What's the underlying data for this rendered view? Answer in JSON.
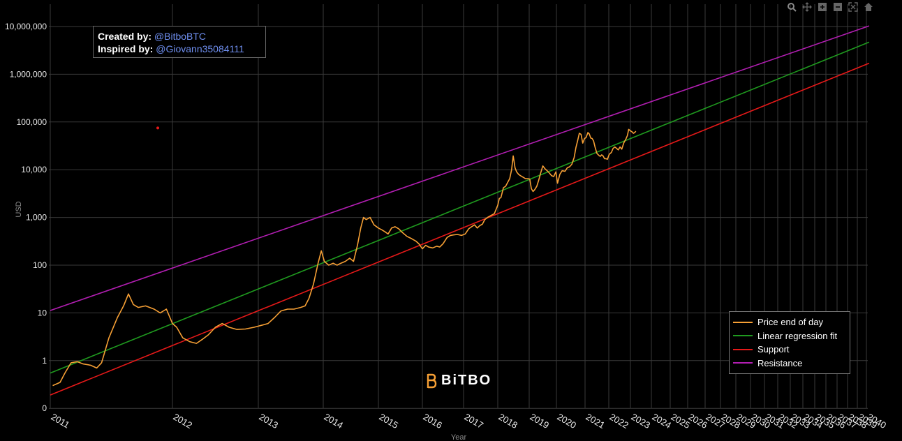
{
  "chart_data": {
    "type": "line",
    "title": "",
    "xlabel": "Year",
    "ylabel": "USD",
    "y_scale": "log",
    "ylim": [
      0.1,
      15000000
    ],
    "xlim": [
      2011.0,
      2040.5
    ],
    "grid": true,
    "legend_position": "bottom-right",
    "y_ticks": [
      {
        "value": 0.1,
        "label": "0"
      },
      {
        "value": 1,
        "label": "1"
      },
      {
        "value": 10,
        "label": "10"
      },
      {
        "value": 100,
        "label": "100"
      },
      {
        "value": 1000,
        "label": "1,000"
      },
      {
        "value": 10000,
        "label": "10,000"
      },
      {
        "value": 100000,
        "label": "100,000"
      },
      {
        "value": 1000000,
        "label": "1,000,000"
      },
      {
        "value": 10000000,
        "label": "10,000,000"
      }
    ],
    "x_ticks": [
      "2011",
      "2012",
      "2013",
      "2014",
      "2015",
      "2016",
      "2017",
      "2018",
      "2019",
      "2020",
      "2021",
      "2022",
      "2023",
      "2024",
      "2025",
      "2026",
      "2027",
      "2028",
      "2029",
      "2030",
      "2031",
      "2032",
      "2033",
      "2034",
      "2035",
      "2036",
      "2037",
      "2038",
      "2039",
      "2040"
    ],
    "series": [
      {
        "name": "Price end of day",
        "color": "#f7a035",
        "points": [
          [
            2011.02,
            0.3
          ],
          [
            2011.08,
            0.35
          ],
          [
            2011.12,
            0.55
          ],
          [
            2011.17,
            0.9
          ],
          [
            2011.22,
            0.95
          ],
          [
            2011.27,
            0.85
          ],
          [
            2011.33,
            0.8
          ],
          [
            2011.38,
            0.7
          ],
          [
            2011.42,
            0.9
          ],
          [
            2011.48,
            3
          ],
          [
            2011.55,
            8
          ],
          [
            2011.6,
            14
          ],
          [
            2011.64,
            25
          ],
          [
            2011.68,
            15
          ],
          [
            2011.72,
            13
          ],
          [
            2011.78,
            14
          ],
          [
            2011.85,
            12
          ],
          [
            2011.9,
            10
          ],
          [
            2011.95,
            12
          ],
          [
            2012.0,
            6
          ],
          [
            2012.05,
            5
          ],
          [
            2012.12,
            3
          ],
          [
            2012.2,
            2.5
          ],
          [
            2012.28,
            2.3
          ],
          [
            2012.35,
            2.8
          ],
          [
            2012.42,
            3.5
          ],
          [
            2012.5,
            5
          ],
          [
            2012.58,
            6
          ],
          [
            2012.66,
            5
          ],
          [
            2012.75,
            4.5
          ],
          [
            2012.85,
            4.6
          ],
          [
            2012.95,
            5
          ],
          [
            2013.05,
            5.5
          ],
          [
            2013.15,
            6
          ],
          [
            2013.25,
            8
          ],
          [
            2013.35,
            11
          ],
          [
            2013.45,
            12
          ],
          [
            2013.55,
            12
          ],
          [
            2013.65,
            13
          ],
          [
            2013.72,
            14
          ],
          [
            2013.78,
            20
          ],
          [
            2013.85,
            40
          ],
          [
            2013.92,
            110
          ],
          [
            2013.97,
            200
          ],
          [
            2014.02,
            120
          ],
          [
            2014.1,
            100
          ],
          [
            2014.18,
            110
          ],
          [
            2014.25,
            100
          ],
          [
            2014.32,
            110
          ],
          [
            2014.4,
            120
          ],
          [
            2014.48,
            140
          ],
          [
            2014.55,
            120
          ],
          [
            2014.62,
            260
          ],
          [
            2014.68,
            600
          ],
          [
            2014.73,
            1000
          ],
          [
            2014.78,
            900
          ],
          [
            2014.85,
            1000
          ],
          [
            2014.92,
            700
          ],
          [
            2015.0,
            600
          ],
          [
            2015.08,
            550
          ],
          [
            2015.15,
            500
          ],
          [
            2015.22,
            450
          ],
          [
            2015.3,
            600
          ],
          [
            2015.38,
            640
          ],
          [
            2015.46,
            580
          ],
          [
            2015.55,
            480
          ],
          [
            2015.65,
            400
          ],
          [
            2015.75,
            360
          ],
          [
            2015.85,
            320
          ],
          [
            2015.92,
            280
          ],
          [
            2016.0,
            220
          ],
          [
            2016.08,
            260
          ],
          [
            2016.15,
            240
          ],
          [
            2016.25,
            230
          ],
          [
            2016.35,
            250
          ],
          [
            2016.42,
            240
          ],
          [
            2016.5,
            280
          ],
          [
            2016.6,
            380
          ],
          [
            2016.68,
            420
          ],
          [
            2016.75,
            430
          ],
          [
            2016.85,
            440
          ],
          [
            2016.95,
            420
          ],
          [
            2017.05,
            450
          ],
          [
            2017.15,
            580
          ],
          [
            2017.25,
            650
          ],
          [
            2017.32,
            700
          ],
          [
            2017.4,
            600
          ],
          [
            2017.48,
            680
          ],
          [
            2017.55,
            720
          ],
          [
            2017.62,
            900
          ],
          [
            2017.7,
            1000
          ],
          [
            2017.8,
            1100
          ],
          [
            2017.9,
            1200
          ],
          [
            2018.0,
            1800
          ],
          [
            2018.05,
            2500
          ],
          [
            2018.1,
            2600
          ],
          [
            2018.18,
            4200
          ],
          [
            2018.25,
            4500
          ],
          [
            2018.32,
            5500
          ],
          [
            2018.38,
            6500
          ],
          [
            2018.44,
            10000
          ],
          [
            2018.49,
            19500
          ],
          [
            2018.55,
            11000
          ],
          [
            2018.6,
            9000
          ],
          [
            2018.66,
            8000
          ],
          [
            2018.72,
            7500
          ],
          [
            2018.8,
            7000
          ],
          [
            2018.88,
            6500
          ],
          [
            2018.95,
            6500
          ],
          [
            2019.02,
            6400
          ],
          [
            2019.08,
            4000
          ],
          [
            2019.14,
            3500
          ],
          [
            2019.2,
            3800
          ],
          [
            2019.28,
            4500
          ],
          [
            2019.35,
            6000
          ],
          [
            2019.42,
            8500
          ],
          [
            2019.5,
            12000
          ],
          [
            2019.58,
            10500
          ],
          [
            2019.66,
            9500
          ],
          [
            2019.74,
            8500
          ],
          [
            2019.82,
            7500
          ],
          [
            2019.9,
            7200
          ],
          [
            2019.98,
            9000
          ],
          [
            2020.04,
            5200
          ],
          [
            2020.12,
            8000
          ],
          [
            2020.2,
            9500
          ],
          [
            2020.3,
            9300
          ],
          [
            2020.38,
            11000
          ],
          [
            2020.46,
            11500
          ],
          [
            2020.54,
            13000
          ],
          [
            2020.62,
            18000
          ],
          [
            2020.68,
            29000
          ],
          [
            2020.74,
            40000
          ],
          [
            2020.8,
            58000
          ],
          [
            2020.86,
            55000
          ],
          [
            2020.92,
            36000
          ],
          [
            2020.98,
            45000
          ],
          [
            2021.04,
            47000
          ],
          [
            2021.12,
            60000
          ],
          [
            2021.18,
            56000
          ],
          [
            2021.24,
            46000
          ],
          [
            2021.3,
            45000
          ],
          [
            2021.36,
            40000
          ],
          [
            2021.42,
            30000
          ],
          [
            2021.5,
            22000
          ],
          [
            2021.58,
            20000
          ],
          [
            2021.64,
            19000
          ],
          [
            2021.7,
            20500
          ],
          [
            2021.76,
            19500
          ],
          [
            2021.82,
            17000
          ],
          [
            2021.88,
            17000
          ],
          [
            2021.94,
            16500
          ],
          [
            2022.02,
            21000
          ],
          [
            2022.12,
            23000
          ],
          [
            2022.2,
            28000
          ],
          [
            2022.28,
            30000
          ],
          [
            2022.36,
            28000
          ],
          [
            2022.44,
            26000
          ],
          [
            2022.52,
            30000
          ],
          [
            2022.6,
            27000
          ],
          [
            2022.7,
            37000
          ],
          [
            2022.78,
            43000
          ],
          [
            2022.86,
            52000
          ],
          [
            2022.92,
            70000
          ],
          [
            2023.0,
            65000
          ],
          [
            2023.08,
            62000
          ],
          [
            2023.14,
            58000
          ],
          [
            2023.2,
            60000
          ],
          [
            2023.26,
            64000
          ]
        ]
      },
      {
        "name": "Linear regression fit",
        "color": "#1f9a1f",
        "points": [
          [
            2011.0,
            0.55
          ],
          [
            2040.3,
            4700000
          ]
        ]
      },
      {
        "name": "Support",
        "color": "#e61919",
        "points": [
          [
            2011.0,
            0.19
          ],
          [
            2040.3,
            1700000
          ]
        ]
      },
      {
        "name": "Resistance",
        "color": "#b21eb2",
        "points": [
          [
            2011.0,
            11.2
          ],
          [
            2040.3,
            10300000
          ]
        ]
      }
    ],
    "annotations": [
      {
        "type": "marker",
        "x": 2011.88,
        "y": 75000,
        "color": "#e61919"
      }
    ]
  },
  "credit": {
    "created_label": "Created by:",
    "created_handle": "@BitboBTC",
    "inspired_label": "Inspired by:",
    "inspired_handle": "@Giovann35084111"
  },
  "watermark": {
    "text": "BiTBO",
    "color": "#f7a035"
  },
  "modebar": {
    "icons": [
      "zoom-icon",
      "pan-icon",
      "zoom-in-icon",
      "zoom-out-icon",
      "autoscale-icon",
      "reset-axes-icon"
    ]
  }
}
